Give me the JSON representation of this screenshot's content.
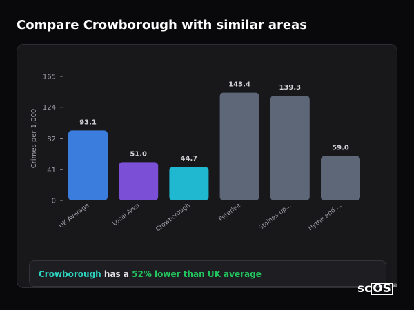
{
  "page": {
    "title": "Compare Crowborough with similar areas"
  },
  "chart_data": {
    "type": "bar",
    "ylabel": "Crimes per 1,000",
    "xlabel": "",
    "ylim": [
      0,
      165
    ],
    "yticks": [
      0,
      41,
      82,
      124,
      165
    ],
    "grid": false,
    "categories": [
      "UK Average",
      "Local Area",
      "Crowborough",
      "Peterlee",
      "Staines-up...",
      "Hythe and ..."
    ],
    "values": [
      93.1,
      51.0,
      44.7,
      143.4,
      139.3,
      59.0
    ],
    "value_labels": [
      "93.1",
      "51.0",
      "44.7",
      "143.4",
      "139.3",
      "59.0"
    ],
    "colors": [
      "#3b7ddd",
      "#7b4fd6",
      "#1fb8d0",
      "#5d6778",
      "#5d6778",
      "#5d6778"
    ]
  },
  "summary": {
    "area": "Crowborough",
    "text_mid": " has a ",
    "highlight": "52% lower than UK average"
  },
  "branding": {
    "logo_sc": "sc",
    "logo_os": "OS",
    "logo_reg": "®"
  }
}
